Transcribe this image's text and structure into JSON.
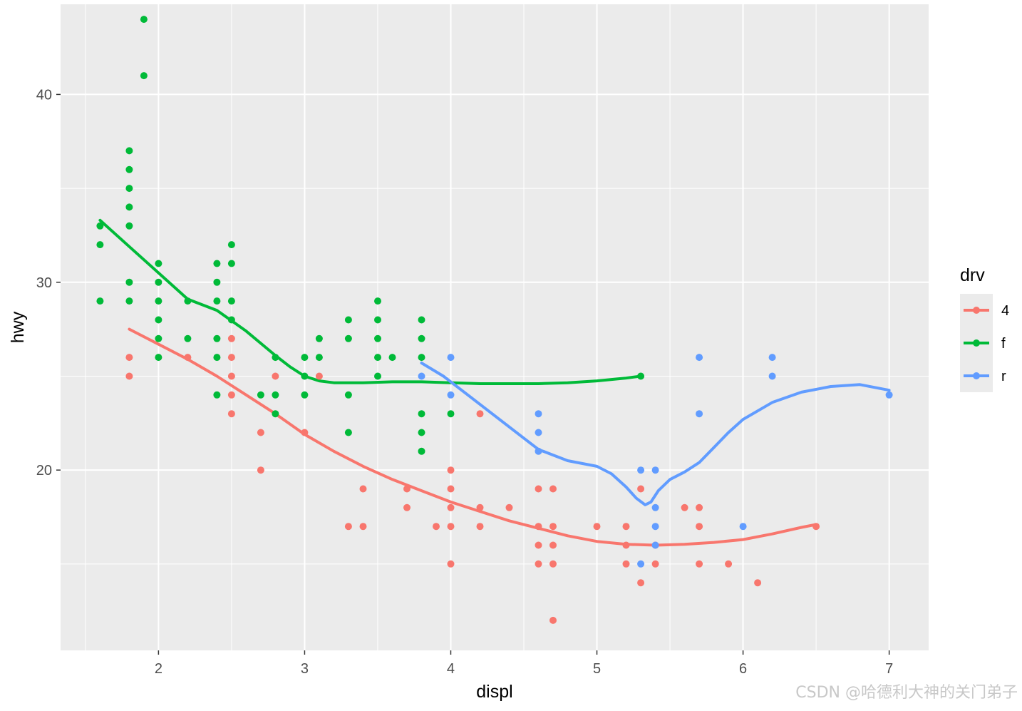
{
  "chart_data": {
    "type": "scatter",
    "title": "",
    "xlabel": "displ",
    "ylabel": "hwy",
    "xlim": [
      1.33,
      7.27
    ],
    "ylim": [
      10.4,
      44.8
    ],
    "x_ticks": [
      2,
      3,
      4,
      5,
      6,
      7
    ],
    "y_ticks": [
      20,
      30,
      40
    ],
    "grid": true,
    "legend": {
      "title": "drv",
      "placement": "right",
      "entries": [
        {
          "label": "4",
          "color": "#F8766D"
        },
        {
          "label": "f",
          "color": "#00BA38"
        },
        {
          "label": "r",
          "color": "#619CFF"
        }
      ]
    },
    "series": [
      {
        "name": "4",
        "color": "#F8766D",
        "points": [
          [
            1.8,
            26
          ],
          [
            1.8,
            25
          ],
          [
            2.2,
            26
          ],
          [
            2.5,
            27
          ],
          [
            2.5,
            26
          ],
          [
            2.5,
            25
          ],
          [
            2.5,
            24
          ],
          [
            2.5,
            23
          ],
          [
            2.7,
            22
          ],
          [
            2.7,
            20
          ],
          [
            2.8,
            25
          ],
          [
            3.0,
            22
          ],
          [
            3.1,
            25
          ],
          [
            3.3,
            17
          ],
          [
            3.4,
            19
          ],
          [
            3.4,
            17
          ],
          [
            3.7,
            19
          ],
          [
            3.7,
            18
          ],
          [
            3.9,
            17
          ],
          [
            4.0,
            20
          ],
          [
            4.0,
            19
          ],
          [
            4.0,
            18
          ],
          [
            4.0,
            17
          ],
          [
            4.0,
            15
          ],
          [
            4.2,
            23
          ],
          [
            4.2,
            18
          ],
          [
            4.2,
            17
          ],
          [
            4.4,
            18
          ],
          [
            4.6,
            19
          ],
          [
            4.6,
            17
          ],
          [
            4.6,
            16
          ],
          [
            4.6,
            15
          ],
          [
            4.7,
            19
          ],
          [
            4.7,
            17
          ],
          [
            4.7,
            16
          ],
          [
            4.7,
            15
          ],
          [
            4.7,
            12
          ],
          [
            5.0,
            17
          ],
          [
            5.2,
            17
          ],
          [
            5.2,
            16
          ],
          [
            5.2,
            15
          ],
          [
            5.3,
            19
          ],
          [
            5.3,
            14
          ],
          [
            5.4,
            16
          ],
          [
            5.4,
            15
          ],
          [
            5.6,
            18
          ],
          [
            5.7,
            18
          ],
          [
            5.7,
            17
          ],
          [
            5.7,
            15
          ],
          [
            5.9,
            15
          ],
          [
            6.1,
            14
          ],
          [
            6.5,
            17
          ]
        ],
        "smooth": [
          [
            1.8,
            27.5
          ],
          [
            2.0,
            26.7
          ],
          [
            2.2,
            25.9
          ],
          [
            2.4,
            25.0
          ],
          [
            2.6,
            24.0
          ],
          [
            2.8,
            23.0
          ],
          [
            3.0,
            21.9
          ],
          [
            3.2,
            21.0
          ],
          [
            3.4,
            20.2
          ],
          [
            3.6,
            19.5
          ],
          [
            3.8,
            18.9
          ],
          [
            4.0,
            18.3
          ],
          [
            4.2,
            17.8
          ],
          [
            4.4,
            17.3
          ],
          [
            4.6,
            16.9
          ],
          [
            4.8,
            16.5
          ],
          [
            5.0,
            16.2
          ],
          [
            5.2,
            16.05
          ],
          [
            5.4,
            16.0
          ],
          [
            5.6,
            16.05
          ],
          [
            5.8,
            16.15
          ],
          [
            6.0,
            16.3
          ],
          [
            6.2,
            16.6
          ],
          [
            6.4,
            16.95
          ],
          [
            6.5,
            17.1
          ]
        ]
      },
      {
        "name": "f",
        "color": "#00BA38",
        "points": [
          [
            1.6,
            33
          ],
          [
            1.6,
            32
          ],
          [
            1.6,
            29
          ],
          [
            1.8,
            37
          ],
          [
            1.8,
            36
          ],
          [
            1.8,
            35
          ],
          [
            1.8,
            34
          ],
          [
            1.8,
            33
          ],
          [
            1.8,
            30
          ],
          [
            1.8,
            29
          ],
          [
            1.9,
            44
          ],
          [
            1.9,
            41
          ],
          [
            2.0,
            31
          ],
          [
            2.0,
            30
          ],
          [
            2.0,
            29
          ],
          [
            2.0,
            28
          ],
          [
            2.0,
            27
          ],
          [
            2.0,
            26
          ],
          [
            2.2,
            29
          ],
          [
            2.2,
            27
          ],
          [
            2.4,
            31
          ],
          [
            2.4,
            30
          ],
          [
            2.4,
            29
          ],
          [
            2.4,
            27
          ],
          [
            2.4,
            26
          ],
          [
            2.4,
            24
          ],
          [
            2.5,
            32
          ],
          [
            2.5,
            31
          ],
          [
            2.5,
            29
          ],
          [
            2.5,
            28
          ],
          [
            2.7,
            24
          ],
          [
            2.8,
            26
          ],
          [
            2.8,
            24
          ],
          [
            2.8,
            23
          ],
          [
            3.0,
            26
          ],
          [
            3.0,
            25
          ],
          [
            3.0,
            24
          ],
          [
            3.1,
            27
          ],
          [
            3.1,
            26
          ],
          [
            3.3,
            28
          ],
          [
            3.3,
            27
          ],
          [
            3.3,
            24
          ],
          [
            3.3,
            22
          ],
          [
            3.5,
            29
          ],
          [
            3.5,
            28
          ],
          [
            3.5,
            27
          ],
          [
            3.5,
            26
          ],
          [
            3.5,
            25
          ],
          [
            3.6,
            26
          ],
          [
            3.8,
            28
          ],
          [
            3.8,
            27
          ],
          [
            3.8,
            26
          ],
          [
            3.8,
            23
          ],
          [
            3.8,
            22
          ],
          [
            3.8,
            21
          ],
          [
            4.0,
            23
          ],
          [
            5.3,
            25
          ]
        ],
        "smooth": [
          [
            1.6,
            33.3
          ],
          [
            1.8,
            31.9
          ],
          [
            2.0,
            30.5
          ],
          [
            2.2,
            29.1
          ],
          [
            2.4,
            28.5
          ],
          [
            2.6,
            27.4
          ],
          [
            2.8,
            26.1
          ],
          [
            2.9,
            25.5
          ],
          [
            3.0,
            25.0
          ],
          [
            3.1,
            24.75
          ],
          [
            3.2,
            24.65
          ],
          [
            3.4,
            24.65
          ],
          [
            3.6,
            24.7
          ],
          [
            3.8,
            24.7
          ],
          [
            4.0,
            24.65
          ],
          [
            4.2,
            24.6
          ],
          [
            4.4,
            24.6
          ],
          [
            4.6,
            24.6
          ],
          [
            4.8,
            24.65
          ],
          [
            5.0,
            24.75
          ],
          [
            5.2,
            24.9
          ],
          [
            5.3,
            25.0
          ]
        ]
      },
      {
        "name": "r",
        "color": "#619CFF",
        "points": [
          [
            3.8,
            25
          ],
          [
            4.0,
            26
          ],
          [
            4.0,
            24
          ],
          [
            4.6,
            23
          ],
          [
            4.6,
            22
          ],
          [
            4.6,
            21
          ],
          [
            5.3,
            20
          ],
          [
            5.3,
            15
          ],
          [
            5.4,
            20
          ],
          [
            5.4,
            18
          ],
          [
            5.4,
            17
          ],
          [
            5.4,
            16
          ],
          [
            5.7,
            26
          ],
          [
            5.7,
            23
          ],
          [
            6.0,
            17
          ],
          [
            6.2,
            26
          ],
          [
            6.2,
            25
          ],
          [
            7.0,
            24
          ]
        ],
        "smooth": [
          [
            3.8,
            25.7
          ],
          [
            3.95,
            25.0
          ],
          [
            4.1,
            24.1
          ],
          [
            4.3,
            22.9
          ],
          [
            4.5,
            21.7
          ],
          [
            4.6,
            21.1
          ],
          [
            4.8,
            20.5
          ],
          [
            5.0,
            20.2
          ],
          [
            5.1,
            19.8
          ],
          [
            5.2,
            19.1
          ],
          [
            5.27,
            18.5
          ],
          [
            5.33,
            18.15
          ],
          [
            5.37,
            18.3
          ],
          [
            5.42,
            18.9
          ],
          [
            5.5,
            19.5
          ],
          [
            5.6,
            19.9
          ],
          [
            5.7,
            20.4
          ],
          [
            5.8,
            21.2
          ],
          [
            5.9,
            22.0
          ],
          [
            6.0,
            22.7
          ],
          [
            6.2,
            23.6
          ],
          [
            6.4,
            24.15
          ],
          [
            6.6,
            24.45
          ],
          [
            6.8,
            24.55
          ],
          [
            7.0,
            24.25
          ]
        ]
      }
    ]
  },
  "watermark": "CSDN @哈德利大神的关门弟子"
}
